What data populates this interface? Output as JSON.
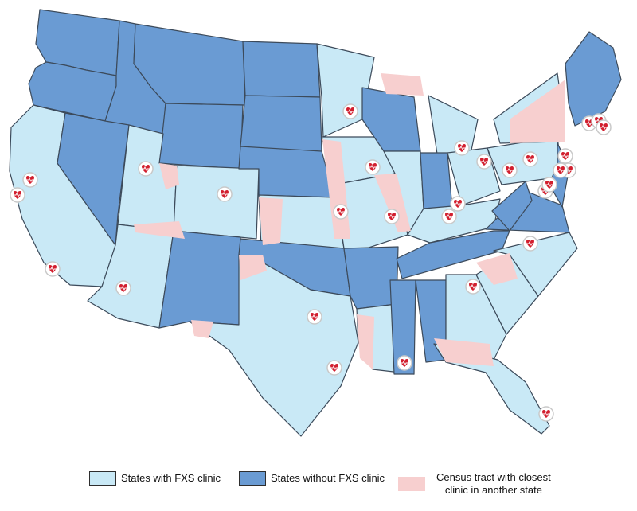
{
  "colors": {
    "with_clinic": "#c9e9f6",
    "without_clinic": "#6a9bd3",
    "tract_other_state": "#f7cfcf",
    "state_border": "#3c4a5a",
    "marker_ring": "#c9c9c9",
    "marker_heart": "#d21f2e"
  },
  "legend": {
    "with_clinic": "States with FXS clinic",
    "without_clinic": "States without FXS clinic",
    "tract_line1": "Census tract with closest",
    "tract_line2": "clinic in another state"
  },
  "clinic_marker_icon": "heart-with-pulse-icon"
}
